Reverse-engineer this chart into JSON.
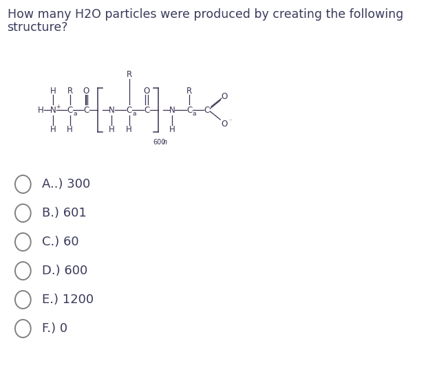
{
  "title_line1": "How many H2O particles were produced by creating the following",
  "title_line2": "structure?",
  "options": [
    "A..) 300",
    "B.) 601",
    "C.) 60",
    "D.) 600",
    "E.) 1200",
    "F.) 0"
  ],
  "bg_color": "#ffffff",
  "text_color": "#3a3a5c",
  "title_fontsize": 12.5,
  "option_fontsize": 13,
  "struct_color": "#3a3050"
}
